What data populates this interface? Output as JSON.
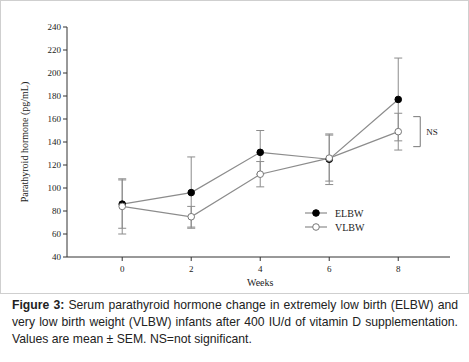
{
  "chart_data": {
    "type": "line",
    "caption_label": "Figure 3:",
    "caption": "Serum parathyroid hormone change in extremely low birth (ELBW) and very low birth weight (VLBW) infants after 400 IU/d of vitamin D supplementation. Values are mean ± SEM. NS=not significant.",
    "x_label": "Weeks",
    "y_label": "Parathyroid hormone (pg/mL)",
    "x": [
      0,
      2,
      4,
      6,
      8
    ],
    "xlim": [
      -1.6,
      9.5
    ],
    "xticks": [
      0,
      2,
      4,
      6,
      8
    ],
    "ylim": [
      40,
      240
    ],
    "yticks": [
      40,
      60,
      80,
      100,
      120,
      140,
      160,
      180,
      200,
      220,
      240
    ],
    "grid": false,
    "legend": "lower right",
    "series": [
      {
        "name": "ELBW",
        "color": "#8c8c8c",
        "marker": "filled-circle",
        "line_style": "solid",
        "values": [
          86,
          96,
          131,
          125,
          177
        ],
        "errors": [
          21,
          31,
          19,
          22,
          36
        ]
      },
      {
        "name": "VLBW",
        "color": "#8c8c8c",
        "marker": "open-circle",
        "line_style": "solid",
        "values": [
          84,
          75,
          112,
          126,
          149
        ],
        "errors": [
          24,
          9,
          11,
          20,
          16
        ]
      }
    ],
    "annotations": [
      {
        "text": "NS"
      }
    ]
  }
}
